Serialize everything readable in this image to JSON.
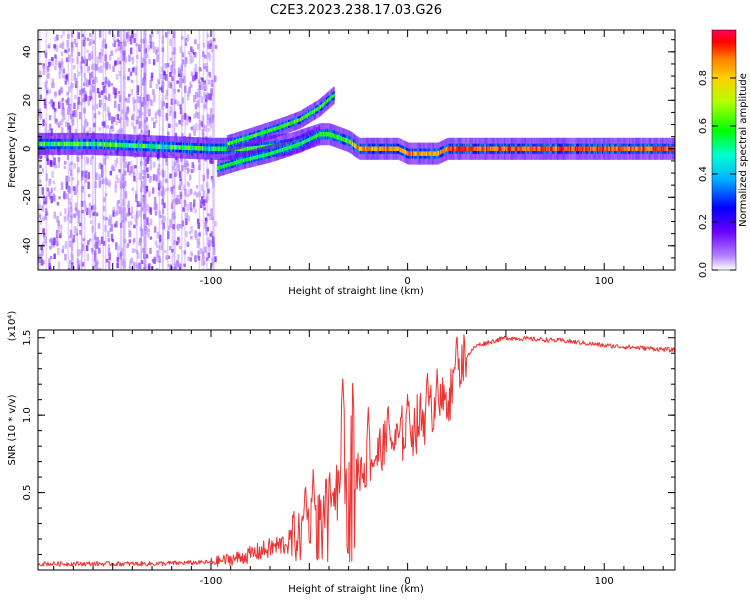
{
  "title": "C2E3.2023.238.17.03.G26",
  "colors": {
    "snr_line": "#ee3333",
    "axis": "#000000",
    "background": "#ffffff"
  },
  "chart_data": [
    {
      "type": "heatmap",
      "xlabel": "Height of straight line (km)",
      "ylabel": "Frequency (Hz)",
      "xlim": [
        -188,
        136
      ],
      "ylim": [
        -50,
        49
      ],
      "xticks": [
        -100,
        0,
        100
      ],
      "yticks": [
        -40,
        -20,
        0,
        20,
        40
      ],
      "colorbar": {
        "label": "Normalized spectral amplitude",
        "range": [
          0,
          1
        ],
        "ticks": [
          0.0,
          0.2,
          0.4,
          0.6,
          0.8
        ],
        "colormap": "rainbow (violet to red)"
      },
      "features": {
        "noise_region_x": [
          -188,
          -98
        ],
        "main_line": [
          [
            -188,
            2
          ],
          [
            -160,
            2
          ],
          [
            -130,
            1
          ],
          [
            -100,
            0
          ],
          [
            -80,
            0
          ],
          [
            -60,
            2
          ],
          [
            -45,
            6
          ],
          [
            -40,
            6
          ],
          [
            -30,
            3
          ],
          [
            -25,
            0
          ],
          [
            -5,
            0
          ],
          [
            0,
            -2
          ],
          [
            15,
            -2
          ],
          [
            20,
            0
          ],
          [
            136,
            0
          ]
        ],
        "upper_branch": [
          [
            -92,
            2
          ],
          [
            -80,
            5
          ],
          [
            -65,
            9
          ],
          [
            -55,
            12
          ],
          [
            -45,
            17
          ],
          [
            -38,
            22
          ]
        ],
        "lower_branch": [
          [
            -97,
            -8
          ],
          [
            -85,
            -5
          ],
          [
            -70,
            -2
          ],
          [
            -55,
            2
          ],
          [
            -45,
            6
          ]
        ]
      }
    },
    {
      "type": "line",
      "xlabel": "Height of straight line (km)",
      "ylabel": "SNR (10 * v/v)",
      "y_multiplier": "(x10⁴)",
      "xlim": [
        -188,
        136
      ],
      "ylim": [
        0,
        1.55
      ],
      "xticks": [
        -100,
        0,
        100
      ],
      "yticks": [
        0.5,
        1.0,
        1.5
      ],
      "ytick_labels": [
        "0.5",
        "1.0",
        "1.5"
      ],
      "series": [
        {
          "trend": [
            [
              -188,
              0.04
            ],
            [
              -130,
              0.04
            ],
            [
              -100,
              0.05
            ],
            [
              -85,
              0.08
            ],
            [
              -75,
              0.12
            ],
            [
              -60,
              0.18
            ],
            [
              -50,
              0.3
            ],
            [
              -45,
              0.35
            ],
            [
              -35,
              0.5
            ],
            [
              -28,
              0.6
            ],
            [
              -20,
              0.7
            ],
            [
              -10,
              0.8
            ],
            [
              0,
              0.9
            ],
            [
              10,
              1.0
            ],
            [
              20,
              1.1
            ],
            [
              28,
              1.35
            ],
            [
              35,
              1.45
            ],
            [
              50,
              1.5
            ],
            [
              80,
              1.48
            ],
            [
              100,
              1.45
            ],
            [
              136,
              1.42
            ]
          ],
          "spikes": [
            [
              -52,
              0.58
            ],
            [
              -48,
              0.65
            ],
            [
              -42,
              0.25
            ],
            [
              -38,
              0.55
            ],
            [
              -33,
              1.25
            ],
            [
              -28,
              1.22
            ],
            [
              -20,
              1.05
            ],
            [
              -10,
              1.1
            ],
            [
              0,
              1.15
            ],
            [
              10,
              1.3
            ],
            [
              15,
              1.3
            ],
            [
              25,
              1.55
            ]
          ]
        }
      ]
    }
  ]
}
